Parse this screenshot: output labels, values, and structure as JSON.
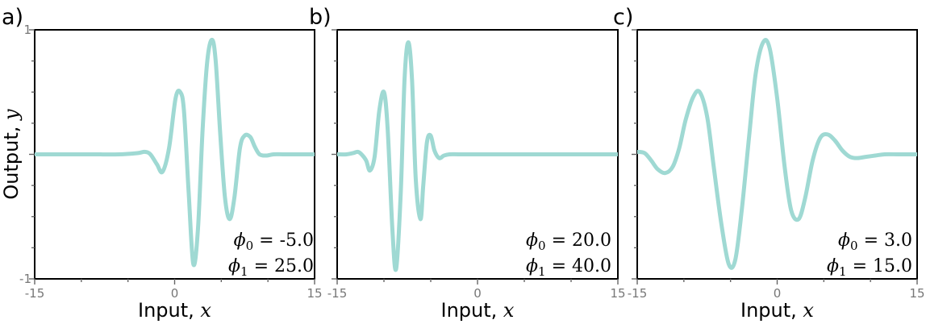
{
  "style": {
    "line_color": "#9fd9d3"
  },
  "chart_data": [
    {
      "type": "line",
      "panel_label": "a)",
      "xlabel": "Input, x",
      "ylabel": "Output, y",
      "xlim": [
        -15,
        15
      ],
      "ylim": [
        -1,
        1
      ],
      "x_tick_labels": [
        "-15",
        "0",
        "15"
      ],
      "y_tick_labels": [
        "1",
        "-1"
      ],
      "grid": false,
      "params": {
        "phi0": "-5.0",
        "phi1": "25.0"
      },
      "annotation_lines": [
        "ϕ0 = −5.0",
        "ϕ1 = 25.0"
      ],
      "series": [
        {
          "x": [
            -15,
            -12,
            -9,
            -6,
            -4,
            -3.2,
            -2.6,
            -1.9,
            -1.3,
            -0.6,
            0.1,
            0.6,
            1.0,
            1.5,
            2.0,
            2.5,
            3.0,
            3.5,
            4.0,
            4.4,
            4.9,
            5.4,
            5.9,
            6.4,
            7.0,
            7.5,
            8.1,
            8.6,
            9.1,
            9.8,
            10.6,
            11.6,
            13,
            15
          ],
          "y": [
            0,
            0,
            0,
            0,
            0.01,
            0.02,
            0.0,
            -0.08,
            -0.14,
            0.05,
            0.45,
            0.5,
            0.35,
            -0.3,
            -0.88,
            -0.6,
            0.2,
            0.75,
            0.92,
            0.75,
            0.15,
            -0.35,
            -0.52,
            -0.35,
            0.05,
            0.15,
            0.14,
            0.06,
            0.0,
            -0.01,
            0.0,
            0,
            0,
            0
          ]
        }
      ]
    },
    {
      "type": "line",
      "panel_label": "b)",
      "xlabel": "Input, x",
      "ylabel": "",
      "xlim": [
        -15,
        15
      ],
      "ylim": [
        -1,
        1
      ],
      "x_tick_labels": [
        "-15",
        "0",
        "15"
      ],
      "y_tick_labels": [],
      "grid": false,
      "params": {
        "phi0": "20.0",
        "phi1": "40.0"
      },
      "annotation_lines": [
        "ϕ0 = 20.0",
        "ϕ1 = 40.0"
      ],
      "series": [
        {
          "x": [
            -15,
            -14,
            -13.3,
            -12.8,
            -12.4,
            -11.9,
            -11.5,
            -11.0,
            -10.5,
            -10.0,
            -9.6,
            -9.1,
            -8.7,
            -8.2,
            -7.8,
            -7.4,
            -7.0,
            -6.6,
            -6.1,
            -5.8,
            -5.4,
            -5.0,
            -4.6,
            -4.1,
            -3.6,
            -3.0,
            -2,
            0,
            15
          ],
          "y": [
            0,
            0,
            0.01,
            0.02,
            0.0,
            -0.05,
            -0.13,
            -0.02,
            0.35,
            0.5,
            0.2,
            -0.6,
            -0.92,
            -0.3,
            0.6,
            0.9,
            0.6,
            -0.2,
            -0.52,
            -0.25,
            0.1,
            0.15,
            0.03,
            -0.03,
            -0.01,
            0,
            0,
            0,
            0
          ]
        }
      ]
    },
    {
      "type": "line",
      "panel_label": "c)",
      "xlabel": "Input, x",
      "ylabel": "",
      "xlim": [
        -15,
        15
      ],
      "ylim": [
        -1,
        1
      ],
      "x_tick_labels": [
        "-15",
        "0",
        "15"
      ],
      "y_tick_labels": [],
      "grid": false,
      "params": {
        "phi0": "3.0",
        "phi1": "15.0"
      },
      "annotation_lines": [
        "ϕ0 = 3.0",
        "ϕ1 = 15.0"
      ],
      "series": [
        {
          "x": [
            -15,
            -14.2,
            -13.5,
            -12.8,
            -12.0,
            -11.2,
            -10.5,
            -9.8,
            -9.0,
            -8.3,
            -7.5,
            -6.8,
            -6.0,
            -5.2,
            -4.5,
            -3.8,
            -3.0,
            -2.3,
            -1.5,
            -0.8,
            0.0,
            0.8,
            1.5,
            2.3,
            3.0,
            3.8,
            4.6,
            5.4,
            6.2,
            7.0,
            7.8,
            8.6,
            9.5,
            10.5,
            11.5,
            13,
            15
          ],
          "y": [
            0.02,
            0.01,
            -0.05,
            -0.12,
            -0.15,
            -0.1,
            0.05,
            0.28,
            0.46,
            0.5,
            0.3,
            -0.1,
            -0.55,
            -0.88,
            -0.85,
            -0.45,
            0.15,
            0.65,
            0.9,
            0.85,
            0.45,
            -0.1,
            -0.45,
            -0.52,
            -0.35,
            -0.05,
            0.13,
            0.16,
            0.11,
            0.03,
            -0.02,
            -0.03,
            -0.02,
            -0.01,
            0,
            0,
            0
          ]
        }
      ]
    }
  ]
}
